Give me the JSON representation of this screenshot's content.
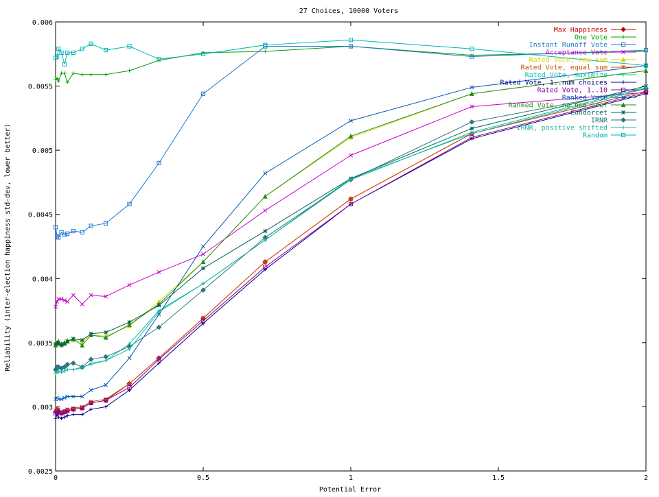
{
  "chart_data": {
    "type": "line",
    "title": "27 Choices, 10000 Voters",
    "xlabel": "Potential Error",
    "ylabel": "Reliability (inter-election happiness std-dev, lower better)",
    "xlim": [
      0,
      2
    ],
    "ylim": [
      0.0025,
      0.006
    ],
    "x_ticks": [
      "0",
      "0.5",
      "1",
      "1.5",
      "2"
    ],
    "y_ticks": [
      "0.0025",
      "0.003",
      "0.0035",
      "0.004",
      "0.0045",
      "0.005",
      "0.0055",
      "0.006"
    ],
    "legend_position": "top-right",
    "grid": false,
    "x": [
      0,
      0.005,
      0.01,
      0.02,
      0.03,
      0.04,
      0.06,
      0.09,
      0.12,
      0.17,
      0.25,
      0.35,
      0.5,
      0.71,
      1.0,
      1.41,
      2.0
    ],
    "series": [
      {
        "name": "Max Happiness",
        "color": "#cc0000",
        "marker": "diamond",
        "values": [
          0.00296,
          0.00298,
          0.00296,
          0.00295,
          0.00296,
          0.00297,
          0.00298,
          0.00299,
          0.00303,
          0.00305,
          0.00318,
          0.00338,
          0.00369,
          0.00413,
          0.00462,
          0.00513,
          0.00546
        ]
      },
      {
        "name": "One Vote",
        "color": "#00a000",
        "marker": "plus",
        "values": [
          0.00555,
          0.00556,
          0.00554,
          0.0056,
          0.0056,
          0.00553,
          0.0056,
          0.00559,
          0.00559,
          0.00559,
          0.00562,
          0.0057,
          0.00576,
          0.00577,
          0.00581,
          0.00574,
          0.00577
        ]
      },
      {
        "name": "Instant Runoff Vote",
        "color": "#1e78d2",
        "marker": "square",
        "values": [
          0.0044,
          0.00433,
          0.00432,
          0.00436,
          0.00434,
          0.00435,
          0.00437,
          0.00436,
          0.00441,
          0.00443,
          0.00458,
          0.0049,
          0.00544,
          0.00581,
          0.00581,
          0.00573,
          0.00578
        ]
      },
      {
        "name": "Acceptance Vote",
        "color": "#cc00cc",
        "marker": "x",
        "values": [
          0.00378,
          0.00382,
          0.00384,
          0.00384,
          0.00383,
          0.00382,
          0.00387,
          0.0038,
          0.00387,
          0.00386,
          0.00395,
          0.00405,
          0.00419,
          0.00453,
          0.00496,
          0.00534,
          0.00545
        ]
      },
      {
        "name": "Rated Vote, raw sum",
        "color": "#d4d400",
        "marker": "triangle",
        "values": [
          0.0035,
          0.00349,
          0.0035,
          0.00348,
          0.00349,
          0.00352,
          0.00352,
          0.00351,
          0.00356,
          0.00355,
          0.00363,
          0.00382,
          0.00413,
          0.00464,
          0.0051,
          0.00544,
          0.00562
        ]
      },
      {
        "name": "Rated Vote, equal sum",
        "color": "#c85000",
        "marker": "star",
        "values": [
          0.00297,
          0.00299,
          0.00298,
          0.00296,
          0.00297,
          0.00298,
          0.00299,
          0.003,
          0.00304,
          0.00306,
          0.00318,
          0.00338,
          0.00369,
          0.00413,
          0.00462,
          0.00513,
          0.00546
        ]
      },
      {
        "name": "Rated Vote, maximize",
        "color": "#00c0a0",
        "marker": "plus",
        "values": [
          0.00327,
          0.00328,
          0.00328,
          0.00327,
          0.00328,
          0.00329,
          0.00329,
          0.0033,
          0.00334,
          0.00336,
          0.00349,
          0.00375,
          0.00396,
          0.0043,
          0.00478,
          0.00513,
          0.00548
        ]
      },
      {
        "name": "Rated Vote, 1..num choices",
        "color": "#000080",
        "marker": "plus",
        "values": [
          0.00291,
          0.00294,
          0.00292,
          0.00291,
          0.00292,
          0.00293,
          0.00294,
          0.00294,
          0.00298,
          0.003,
          0.00313,
          0.00334,
          0.00365,
          0.00407,
          0.00458,
          0.00509,
          0.00544
        ]
      },
      {
        "name": "Rated Vote, 1..10",
        "color": "#8000a0",
        "marker": "square",
        "values": [
          0.00295,
          0.00297,
          0.00296,
          0.00295,
          0.00296,
          0.00297,
          0.00298,
          0.00299,
          0.00303,
          0.00305,
          0.00315,
          0.00337,
          0.00367,
          0.00409,
          0.00458,
          0.0051,
          0.00545
        ]
      },
      {
        "name": "Ranked Vote",
        "color": "#005ab4",
        "marker": "x",
        "values": [
          0.00306,
          0.00307,
          0.00306,
          0.00306,
          0.00307,
          0.00308,
          0.00308,
          0.00308,
          0.00313,
          0.00317,
          0.00338,
          0.00372,
          0.00425,
          0.00482,
          0.00523,
          0.00549,
          0.00566
        ]
      },
      {
        "name": "Ranked Vote, no neg pref",
        "color": "#208c20",
        "marker": "triangle",
        "values": [
          0.00348,
          0.0035,
          0.00351,
          0.00349,
          0.0035,
          0.00351,
          0.00353,
          0.00348,
          0.00356,
          0.00354,
          0.00364,
          0.0038,
          0.00413,
          0.00464,
          0.00511,
          0.00544,
          0.00562
        ]
      },
      {
        "name": "Condorcet",
        "color": "#006450",
        "marker": "star",
        "values": [
          0.00349,
          0.0035,
          0.00349,
          0.00348,
          0.00349,
          0.00351,
          0.00353,
          0.00352,
          0.00357,
          0.00358,
          0.00366,
          0.00379,
          0.00408,
          0.00437,
          0.00478,
          0.00517,
          0.0055
        ]
      },
      {
        "name": "IRNR",
        "color": "#287880",
        "marker": "diamond",
        "values": [
          0.00329,
          0.00331,
          0.00331,
          0.0033,
          0.00331,
          0.00333,
          0.00334,
          0.00331,
          0.00337,
          0.00339,
          0.00347,
          0.00362,
          0.00391,
          0.00432,
          0.00477,
          0.00522,
          0.00548
        ]
      },
      {
        "name": "IRNR, positive shifted",
        "color": "#20b4a0",
        "marker": "plus",
        "values": [
          0.00326,
          0.00327,
          0.00327,
          0.00327,
          0.00328,
          0.00329,
          0.00329,
          0.00331,
          0.00333,
          0.00336,
          0.00345,
          0.00374,
          0.00396,
          0.0043,
          0.00477,
          0.00514,
          0.00549
        ]
      },
      {
        "name": "Random",
        "color": "#00b4b4",
        "marker": "square",
        "values": [
          0.00572,
          0.00573,
          0.00579,
          0.00576,
          0.00567,
          0.00576,
          0.00576,
          0.00579,
          0.00583,
          0.00578,
          0.00581,
          0.00571,
          0.00575,
          0.00582,
          0.00586,
          0.00579,
          0.00566
        ]
      }
    ]
  }
}
